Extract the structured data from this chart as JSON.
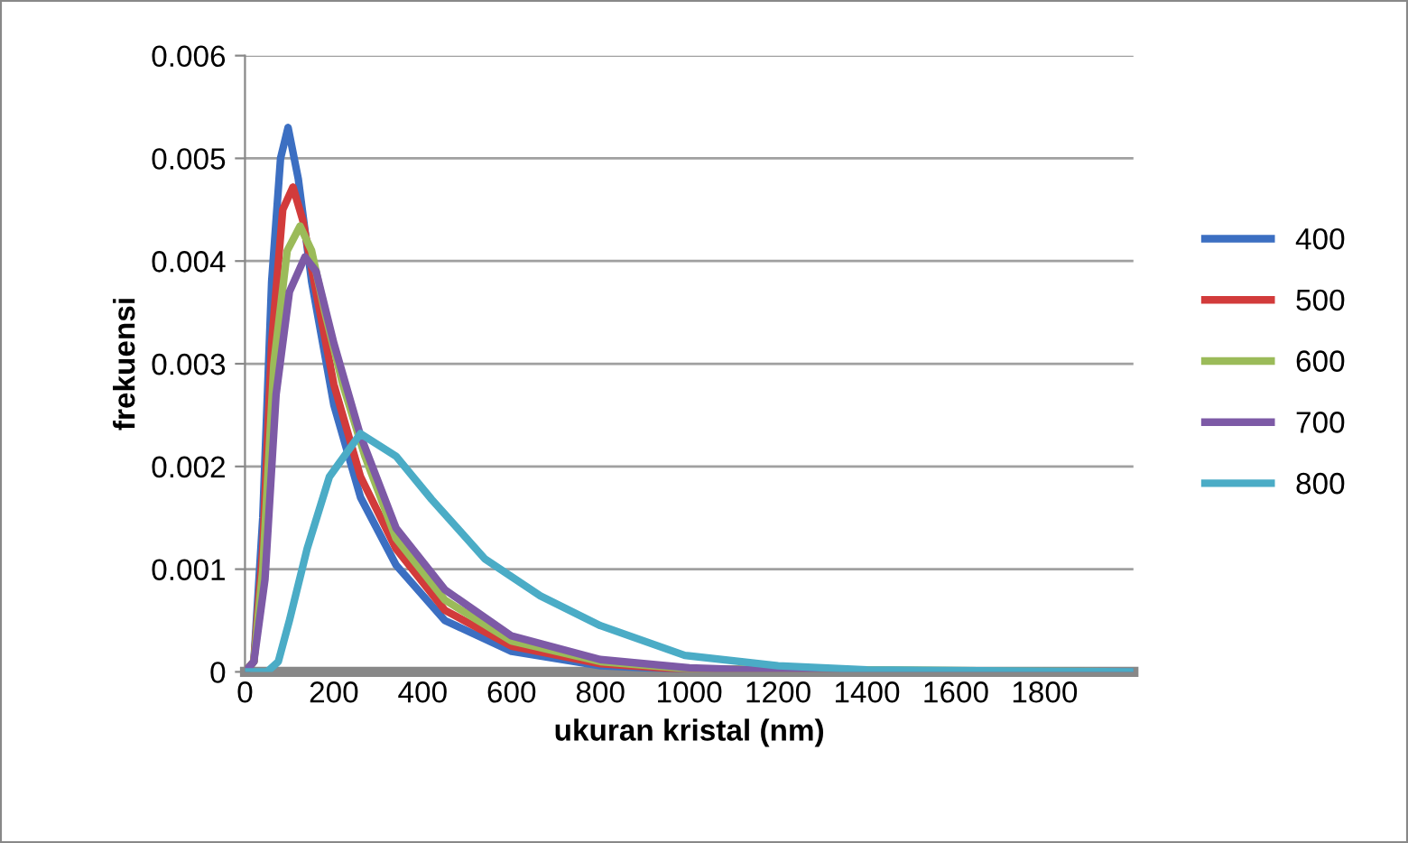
{
  "chart_data": {
    "type": "line",
    "xlabel": "ukuran kristal (nm)",
    "ylabel": "frekuensi",
    "xlim": [
      0,
      2000
    ],
    "xticks": [
      0,
      200,
      400,
      600,
      800,
      1000,
      1200,
      1400,
      1600,
      1800
    ],
    "ylim": [
      0,
      0.006
    ],
    "yticks": [
      0,
      0.001,
      0.002,
      0.003,
      0.004,
      0.005,
      0.006
    ],
    "grid": "y",
    "legend": "right",
    "marker": "none",
    "line_style": "solid",
    "series": [
      {
        "name": "400",
        "color": "#3c6fc2",
        "x": [
          0,
          20,
          40,
          60,
          80,
          97,
          120,
          150,
          200,
          260,
          340,
          450,
          600,
          800,
          1000,
          2000
        ],
        "values": [
          0,
          0.0001,
          0.0015,
          0.0038,
          0.005,
          0.0053,
          0.0048,
          0.0038,
          0.0026,
          0.0017,
          0.00104,
          0.0005,
          0.0002,
          6e-05,
          2e-05,
          0
        ]
      },
      {
        "name": "500",
        "color": "#d23b3b",
        "x": [
          0,
          20,
          40,
          60,
          85,
          108,
          130,
          160,
          200,
          260,
          340,
          450,
          600,
          800,
          1000,
          2000
        ],
        "values": [
          0,
          0.0001,
          0.0012,
          0.0032,
          0.0045,
          0.00472,
          0.0044,
          0.0037,
          0.0028,
          0.0019,
          0.0012,
          0.0006,
          0.00025,
          8e-05,
          2e-05,
          0
        ]
      },
      {
        "name": "600",
        "color": "#9bbb59",
        "x": [
          0,
          20,
          40,
          65,
          95,
          124,
          150,
          180,
          220,
          270,
          340,
          450,
          600,
          800,
          1000,
          2000
        ],
        "values": [
          0,
          0.0001,
          0.001,
          0.003,
          0.0041,
          0.00434,
          0.0041,
          0.0035,
          0.0028,
          0.0021,
          0.0013,
          0.0007,
          0.0003,
          0.0001,
          3e-05,
          0
        ]
      },
      {
        "name": "700",
        "color": "#7d5aa6",
        "x": [
          0,
          20,
          45,
          70,
          100,
          135,
          160,
          200,
          260,
          340,
          450,
          600,
          800,
          1000,
          1200,
          2000
        ],
        "values": [
          0,
          0.0001,
          0.0009,
          0.0027,
          0.0037,
          0.00404,
          0.0039,
          0.0032,
          0.0023,
          0.0014,
          0.0008,
          0.00035,
          0.00012,
          4e-05,
          1e-05,
          0
        ]
      },
      {
        "name": "800",
        "color": "#4bacc6",
        "x": [
          0,
          50,
          75,
          100,
          140,
          190,
          260,
          340,
          420,
          540,
          665,
          800,
          990,
          1200,
          1400,
          2000
        ],
        "values": [
          0,
          0,
          0.0001,
          0.0005,
          0.0012,
          0.0019,
          0.00232,
          0.0021,
          0.00168,
          0.0011,
          0.00074,
          0.00045,
          0.00016,
          6e-05,
          2e-05,
          0
        ]
      }
    ]
  }
}
